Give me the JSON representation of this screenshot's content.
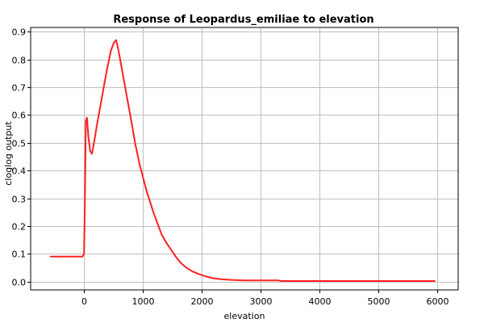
{
  "chart_data": {
    "type": "line",
    "title": "Response of Leopardus_emiliae to elevation",
    "xlabel": "elevation",
    "ylabel": "cloglog output",
    "xlim": [
      -900,
      6350
    ],
    "ylim": [
      -0.03,
      0.915
    ],
    "xticks": [
      0,
      1000,
      2000,
      3000,
      4000,
      5000,
      6000
    ],
    "yticks": [
      0.0,
      0.1,
      0.2,
      0.3,
      0.4,
      0.5,
      0.6,
      0.7,
      0.8,
      0.9
    ],
    "ytick_labels": [
      "0.0",
      "0.1",
      "0.2",
      "0.3",
      "0.4",
      "0.5",
      "0.6",
      "0.7",
      "0.8",
      "0.9"
    ],
    "grid": true,
    "colors": {
      "series": "#ff2020",
      "grid": "#c0c0c0",
      "frame": "#000000"
    },
    "series": [
      {
        "x": [
          -560,
          -20,
          5,
          20,
          35,
          55,
          80,
          110,
          140,
          175,
          220,
          280,
          340,
          400,
          460,
          510,
          550,
          600,
          660,
          720,
          780,
          830,
          870,
          910,
          950,
          1000,
          1060,
          1120,
          1180,
          1250,
          1320,
          1400,
          1480,
          1560,
          1640,
          1740,
          1850,
          1960,
          2080,
          2200,
          2350,
          2500,
          2650,
          2700,
          3000,
          3300,
          3350,
          4000,
          5000,
          5950
        ],
        "y": [
          0.09,
          0.09,
          0.1,
          0.3,
          0.58,
          0.59,
          0.52,
          0.47,
          0.46,
          0.5,
          0.56,
          0.63,
          0.7,
          0.77,
          0.83,
          0.86,
          0.87,
          0.82,
          0.75,
          0.68,
          0.61,
          0.55,
          0.5,
          0.46,
          0.42,
          0.38,
          0.33,
          0.29,
          0.25,
          0.21,
          0.17,
          0.14,
          0.115,
          0.09,
          0.068,
          0.05,
          0.036,
          0.026,
          0.018,
          0.012,
          0.008,
          0.006,
          0.005,
          0.004,
          0.004,
          0.004,
          0.002,
          0.002,
          0.002,
          0.002
        ]
      }
    ]
  }
}
